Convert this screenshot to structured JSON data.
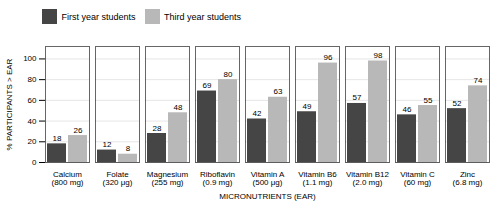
{
  "chart_data": {
    "type": "bar",
    "xlabel": "MICRONUTRIENTS (EAR)",
    "ylabel": "% PARTICIPANTS > EAR",
    "categories": [
      "Calcium\n(800 mg)",
      "Folate\n(320 μg)",
      "Magnesium\n(255 mg)",
      "Riboflavin\n(0.9 mg)",
      "Vitamin A\n(500 μg)",
      "Vitamin B6\n(1.1 mg)",
      "Vitamin B12\n(2.0 mg)",
      "Vitamin C\n(60 mg)",
      "Zinc\n(6.8 mg)"
    ],
    "series": [
      {
        "name": "First year students",
        "color": "#454545",
        "values": [
          18,
          12,
          28,
          69,
          42,
          49,
          57,
          46,
          52
        ]
      },
      {
        "name": "Third year students",
        "color": "#b8b8b8",
        "values": [
          26,
          8,
          48,
          80,
          63,
          96,
          98,
          55,
          74
        ]
      }
    ],
    "ylim": [
      0,
      112
    ],
    "yticks": [
      0,
      20,
      40,
      60,
      80,
      100
    ],
    "grid": true,
    "legend": "upper left",
    "data_labels": true
  }
}
